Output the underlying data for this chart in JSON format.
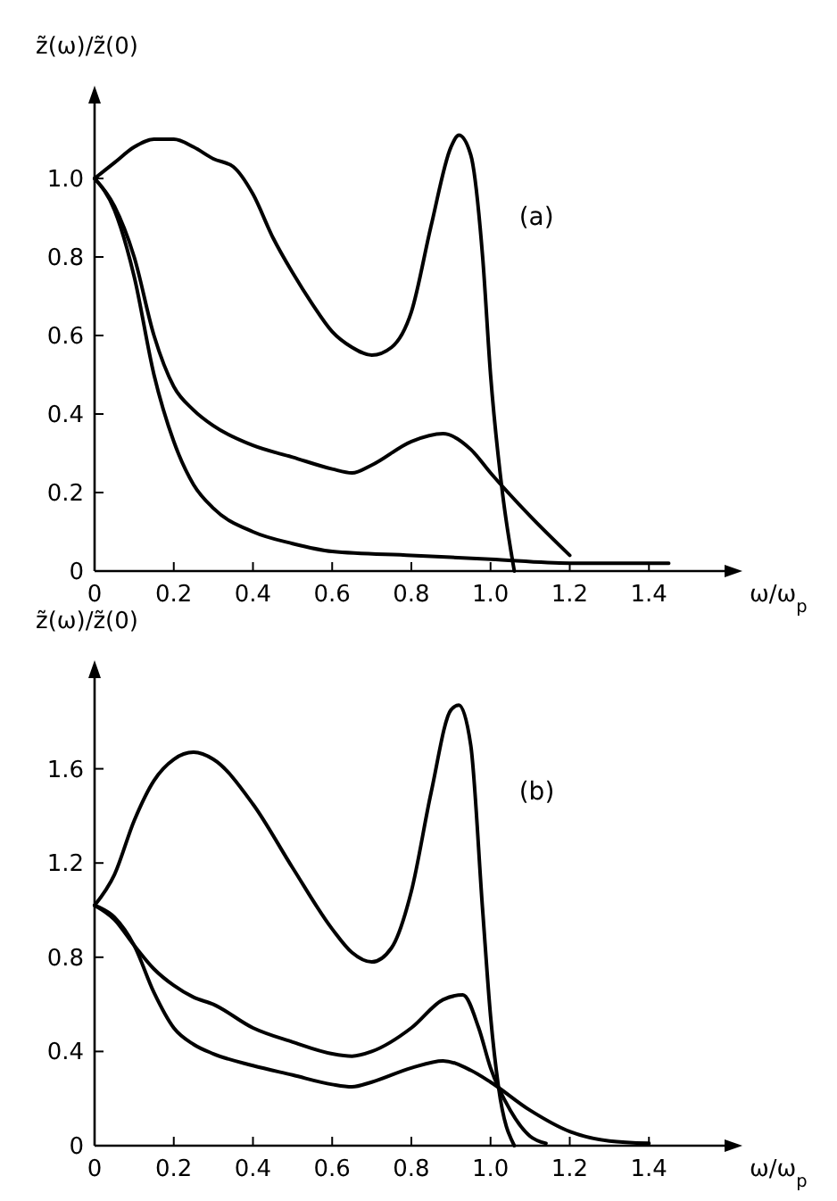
{
  "chart_data": [
    {
      "type": "line",
      "ylabel": "z̃(ω)/z̃(0)",
      "xlabel": "ω/ω$_{p}$",
      "annotations": [
        "(a)"
      ],
      "xlim": [
        0,
        1.6
      ],
      "ylim": [
        0,
        1.2
      ],
      "marker": "none",
      "line_style": "solid",
      "xticks": [
        0,
        0.2,
        0.4,
        0.6,
        0.8,
        {
          "value": 1,
          "label": "1.0"
        },
        1.2,
        1.4
      ],
      "yticks": [
        0,
        0.2,
        0.4,
        0.6,
        0.8,
        {
          "value": 1,
          "label": "1.0"
        }
      ],
      "series": [
        {
          "color": "#000000",
          "x": [
            0,
            0.05,
            0.1,
            0.15,
            0.2,
            0.25,
            0.3,
            0.35,
            0.4,
            0.45,
            0.5,
            0.55,
            0.6,
            0.65,
            0.7,
            0.75,
            0.8,
            0.85,
            0.9,
            0.92,
            0.95,
            0.98,
            1.0,
            1.03,
            1.06
          ],
          "values": [
            1.0,
            1.04,
            1.08,
            1.1,
            1.1,
            1.08,
            1.05,
            1.03,
            0.96,
            0.85,
            0.76,
            0.68,
            0.61,
            0.57,
            0.55,
            0.57,
            0.66,
            0.88,
            1.08,
            1.11,
            1.06,
            0.8,
            0.5,
            0.2,
            0.0
          ]
        },
        {
          "color": "#000000",
          "x": [
            0,
            0.05,
            0.1,
            0.15,
            0.2,
            0.25,
            0.3,
            0.4,
            0.5,
            0.6,
            0.65,
            0.7,
            0.8,
            0.88,
            0.95,
            1.0,
            1.1,
            1.2
          ],
          "values": [
            1.0,
            0.93,
            0.8,
            0.6,
            0.47,
            0.41,
            0.37,
            0.32,
            0.29,
            0.26,
            0.25,
            0.27,
            0.33,
            0.35,
            0.31,
            0.25,
            0.14,
            0.04
          ]
        },
        {
          "color": "#000000",
          "x": [
            0,
            0.05,
            0.1,
            0.15,
            0.2,
            0.25,
            0.3,
            0.4,
            0.5,
            0.6,
            0.8,
            1.0,
            1.2,
            1.45
          ],
          "values": [
            1.0,
            0.92,
            0.75,
            0.5,
            0.33,
            0.22,
            0.16,
            0.1,
            0.07,
            0.05,
            0.04,
            0.03,
            0.02,
            0.02
          ]
        }
      ]
    },
    {
      "type": "line",
      "ylabel": "z̃(ω)/z̃(0)",
      "xlabel": "ω/ω$_{p}$",
      "annotations": [
        "(b)"
      ],
      "xlim": [
        0,
        1.6
      ],
      "ylim": [
        0,
        2.0
      ],
      "marker": "none",
      "line_style": "solid",
      "xticks": [
        0,
        0.2,
        0.4,
        0.6,
        0.8,
        {
          "value": 1,
          "label": "1.0"
        },
        1.2,
        1.4
      ],
      "yticks": [
        0,
        0.4,
        0.8,
        1.2,
        1.6
      ],
      "series": [
        {
          "color": "#000000",
          "x": [
            0,
            0.05,
            0.1,
            0.15,
            0.2,
            0.25,
            0.3,
            0.4,
            0.5,
            0.6,
            0.65,
            0.7,
            0.75,
            0.8,
            0.85,
            0.9,
            0.92,
            0.95,
            0.98,
            1.0,
            1.02,
            1.06
          ],
          "values": [
            1.02,
            1.15,
            1.38,
            1.55,
            1.64,
            1.67,
            1.64,
            1.45,
            1.18,
            0.92,
            0.82,
            0.78,
            0.84,
            1.08,
            1.5,
            1.85,
            1.87,
            1.7,
            1.0,
            0.55,
            0.25,
            0.0
          ]
        },
        {
          "color": "#000000",
          "x": [
            0,
            0.05,
            0.1,
            0.15,
            0.2,
            0.25,
            0.3,
            0.4,
            0.5,
            0.6,
            0.65,
            0.7,
            0.8,
            0.88,
            0.93,
            0.97,
            1.0,
            1.05,
            1.1,
            1.14
          ],
          "values": [
            1.02,
            0.96,
            0.85,
            0.75,
            0.68,
            0.63,
            0.6,
            0.5,
            0.44,
            0.39,
            0.38,
            0.4,
            0.5,
            0.62,
            0.64,
            0.5,
            0.33,
            0.15,
            0.04,
            0.01
          ]
        },
        {
          "color": "#000000",
          "x": [
            0,
            0.05,
            0.1,
            0.15,
            0.2,
            0.25,
            0.3,
            0.4,
            0.5,
            0.6,
            0.65,
            0.7,
            0.8,
            0.88,
            0.95,
            1.0,
            1.1,
            1.2,
            1.3,
            1.4
          ],
          "values": [
            1.02,
            0.97,
            0.85,
            0.65,
            0.5,
            0.43,
            0.39,
            0.34,
            0.3,
            0.26,
            0.25,
            0.27,
            0.33,
            0.36,
            0.32,
            0.27,
            0.15,
            0.06,
            0.02,
            0.01
          ]
        }
      ]
    }
  ]
}
